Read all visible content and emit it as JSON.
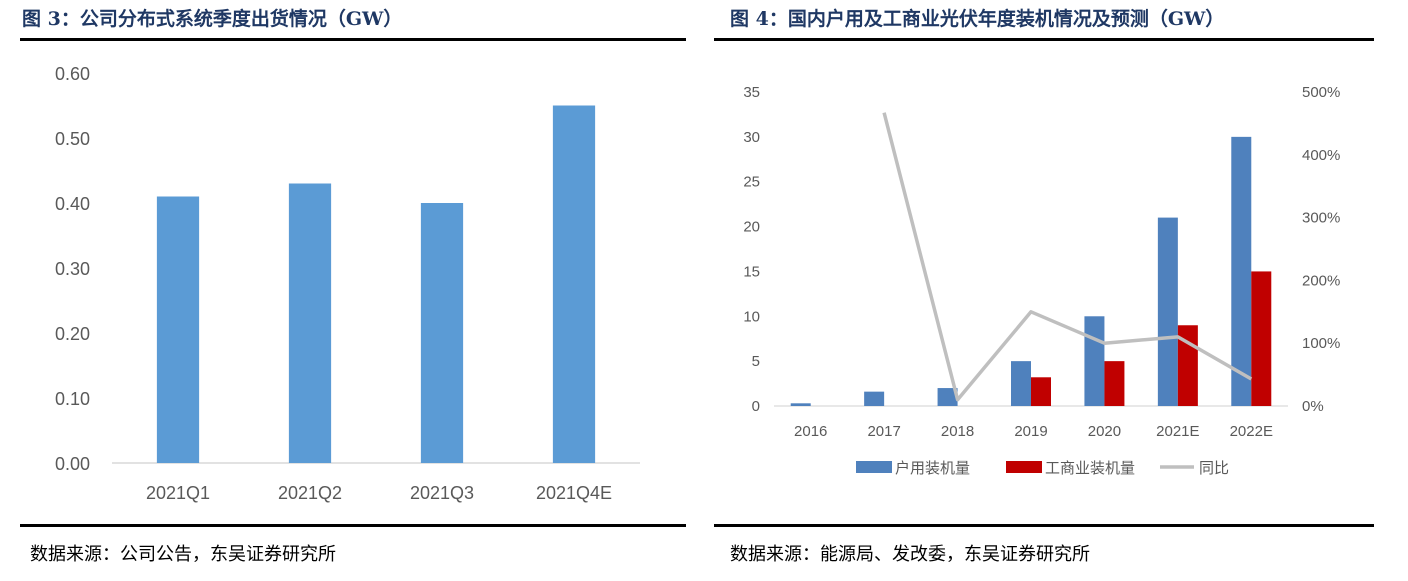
{
  "left": {
    "title": "图 3：公司分布式系统季度出货情况（GW）",
    "source": "数据来源：公司公告，东吴证券研究所"
  },
  "right": {
    "title": "图 4：国内户用及工商业光伏年度装机情况及预测（GW）",
    "source": "数据来源：能源局、发改委，东吴证券研究所"
  },
  "colors": {
    "title": "#1f3864",
    "bar_blue_left": "#5b9bd5",
    "bar_blue_right": "#4f81bd",
    "bar_red": "#c00000",
    "line_gray": "#bfbfbf"
  },
  "chart_data": [
    {
      "type": "bar",
      "title": "图 3：公司分布式系统季度出货情况（GW）",
      "categories": [
        "2021Q1",
        "2021Q2",
        "2021Q3",
        "2021Q4E"
      ],
      "values": [
        0.41,
        0.43,
        0.4,
        0.55
      ],
      "ylim": [
        0,
        0.6
      ],
      "yticks": [
        "0.00",
        "0.10",
        "0.20",
        "0.30",
        "0.40",
        "0.50",
        "0.60"
      ],
      "grid": false
    },
    {
      "type": "bar+line",
      "title": "图 4：国内户用及工商业光伏年度装机情况及预测（GW）",
      "categories": [
        "2016",
        "2017",
        "2018",
        "2019",
        "2020",
        "2021E",
        "2022E"
      ],
      "series": [
        {
          "name": "户用装机量",
          "type": "bar",
          "axis": "left",
          "values": [
            0.3,
            1.6,
            2.0,
            5.0,
            10.0,
            21.0,
            30.0
          ]
        },
        {
          "name": "工商业装机量",
          "type": "bar",
          "axis": "left",
          "values": [
            null,
            null,
            null,
            3.2,
            5.0,
            9.0,
            15.0
          ]
        },
        {
          "name": "同比",
          "type": "line",
          "axis": "right",
          "values": [
            null,
            4.67,
            0.1,
            1.5,
            1.0,
            1.1,
            0.43
          ]
        }
      ],
      "ylim_left": [
        0,
        35
      ],
      "yticks_left": [
        "0",
        "5",
        "10",
        "15",
        "20",
        "25",
        "30",
        "35"
      ],
      "ylim_right": [
        0,
        5
      ],
      "yticks_right": [
        "0%",
        "100%",
        "200%",
        "300%",
        "400%",
        "500%"
      ],
      "legend_placement": "bottom",
      "grid": false
    }
  ]
}
